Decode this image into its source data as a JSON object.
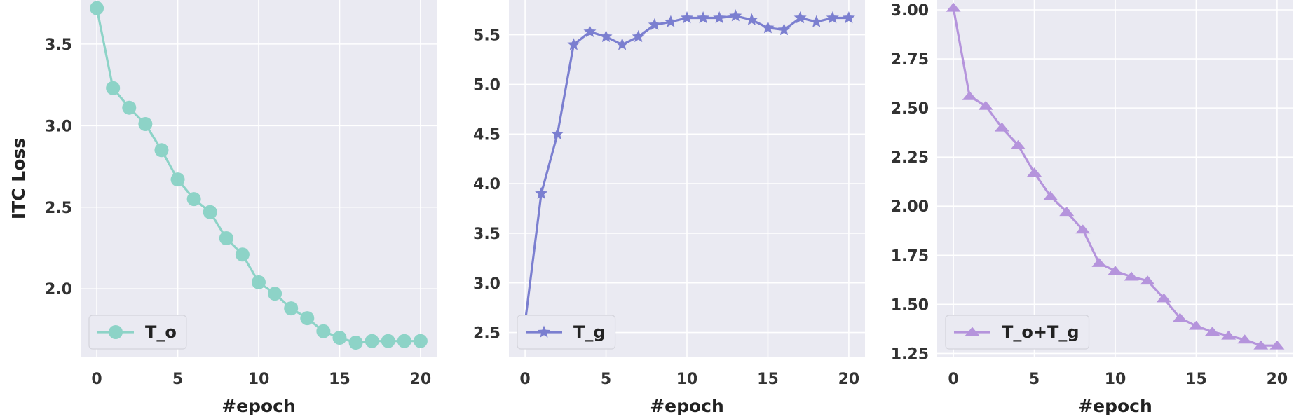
{
  "chart_data": [
    {
      "type": "line",
      "ylabel": "ITC Loss",
      "xlabel": "#epoch",
      "xlim": [
        -1,
        21
      ],
      "ylim": [
        1.58,
        3.77
      ],
      "xticks": [
        0,
        5,
        10,
        15,
        20
      ],
      "yticks": [
        2.0,
        2.5,
        3.0,
        3.5
      ],
      "ytick_labels": [
        "2.0",
        "2.5",
        "3.0",
        "3.5"
      ],
      "grid": true,
      "legend": "bottom-left",
      "series": [
        {
          "name": "T_o",
          "marker": "circle",
          "color": "#8dd3c7",
          "x": [
            0,
            1,
            2,
            3,
            4,
            5,
            6,
            7,
            8,
            9,
            10,
            11,
            12,
            13,
            14,
            15,
            16,
            17,
            18,
            19,
            20
          ],
          "y": [
            3.72,
            3.23,
            3.11,
            3.01,
            2.85,
            2.67,
            2.55,
            2.47,
            2.31,
            2.21,
            2.04,
            1.97,
            1.88,
            1.82,
            1.74,
            1.7,
            1.67,
            1.68,
            1.68,
            1.68,
            1.68
          ]
        }
      ]
    },
    {
      "type": "line",
      "ylabel": "",
      "xlabel": "#epoch",
      "xlim": [
        -1,
        21
      ],
      "ylim": [
        2.25,
        5.85
      ],
      "xticks": [
        0,
        5,
        10,
        15,
        20
      ],
      "yticks": [
        2.5,
        3.0,
        3.5,
        4.0,
        4.5,
        5.0,
        5.5
      ],
      "ytick_labels": [
        "2.5",
        "3.0",
        "3.5",
        "4.0",
        "4.5",
        "5.0",
        "5.5"
      ],
      "grid": true,
      "legend": "bottom-left",
      "series": [
        {
          "name": "T_g",
          "marker": "star",
          "color": "#7b7fd0",
          "x": [
            0,
            1,
            2,
            3,
            4,
            5,
            6,
            7,
            8,
            9,
            10,
            11,
            12,
            13,
            14,
            15,
            16,
            17,
            18,
            19,
            20
          ],
          "y": [
            2.6,
            3.9,
            4.5,
            5.4,
            5.53,
            5.48,
            5.4,
            5.48,
            5.6,
            5.63,
            5.67,
            5.67,
            5.67,
            5.69,
            5.65,
            5.57,
            5.55,
            5.67,
            5.63,
            5.67,
            5.67
          ]
        }
      ]
    },
    {
      "type": "line",
      "ylabel": "",
      "xlabel": "#epoch",
      "xlim": [
        -1,
        21
      ],
      "ylim": [
        1.23,
        3.05
      ],
      "xticks": [
        0,
        5,
        10,
        15,
        20
      ],
      "yticks": [
        1.25,
        1.5,
        1.75,
        2.0,
        2.25,
        2.5,
        2.75,
        3.0
      ],
      "ytick_labels": [
        "1.25",
        "1.50",
        "1.75",
        "2.00",
        "2.25",
        "2.50",
        "2.75",
        "3.00"
      ],
      "grid": true,
      "legend": "bottom-left",
      "series": [
        {
          "name": "T_o+T_g",
          "marker": "triangle",
          "color": "#b594dc",
          "x": [
            0,
            1,
            2,
            3,
            4,
            5,
            6,
            7,
            8,
            9,
            10,
            11,
            12,
            13,
            14,
            15,
            16,
            17,
            18,
            19,
            20
          ],
          "y": [
            3.01,
            2.56,
            2.51,
            2.4,
            2.31,
            2.17,
            2.05,
            1.97,
            1.88,
            1.71,
            1.67,
            1.64,
            1.62,
            1.53,
            1.43,
            1.39,
            1.36,
            1.34,
            1.32,
            1.29,
            1.29
          ]
        }
      ]
    }
  ]
}
